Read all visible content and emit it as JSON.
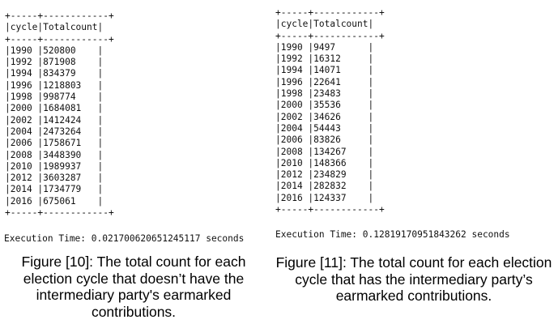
{
  "left": {
    "header_border": "+-----+------------+",
    "header": "|cycle|Totalcount|",
    "rows": [
      "|1990 |520800    |",
      "|1992 |871908    |",
      "|1994 |834379    |",
      "|1996 |1218803   |",
      "|1998 |998774    |",
      "|2000 |1684081   |",
      "|2002 |1412424   |",
      "|2004 |2473264   |",
      "|2006 |1758671   |",
      "|2008 |3448390   |",
      "|2010 |1989937   |",
      "|2012 |3603287   |",
      "|2014 |1734779   |",
      "|2016 |675061    |"
    ],
    "footer_border": "+-----+------------+",
    "execution_time": "Execution Time: 0.021700620651245117 seconds",
    "caption": "Figure [10]: The total count for each election cycle that doesn’t have the intermediary party's earmarked contributions."
  },
  "right": {
    "header_border": "+-----+------------+",
    "header": "|cycle|Totalcount|",
    "rows": [
      "|1990 |9497      |",
      "|1992 |16312     |",
      "|1994 |14071     |",
      "|1996 |22641     |",
      "|1998 |23483     |",
      "|2000 |35536     |",
      "|2002 |34626     |",
      "|2004 |54443     |",
      "|2006 |83826     |",
      "|2008 |134267    |",
      "|2010 |148366    |",
      "|2012 |234829    |",
      "|2014 |282832    |",
      "|2016 |124337    |"
    ],
    "footer_border": "+-----+------------+",
    "execution_time": "Execution Time: 0.12819170951843262 seconds",
    "caption": "Figure [11]: The total count for each election cycle that has the intermediary party’s earmarked contributions."
  }
}
